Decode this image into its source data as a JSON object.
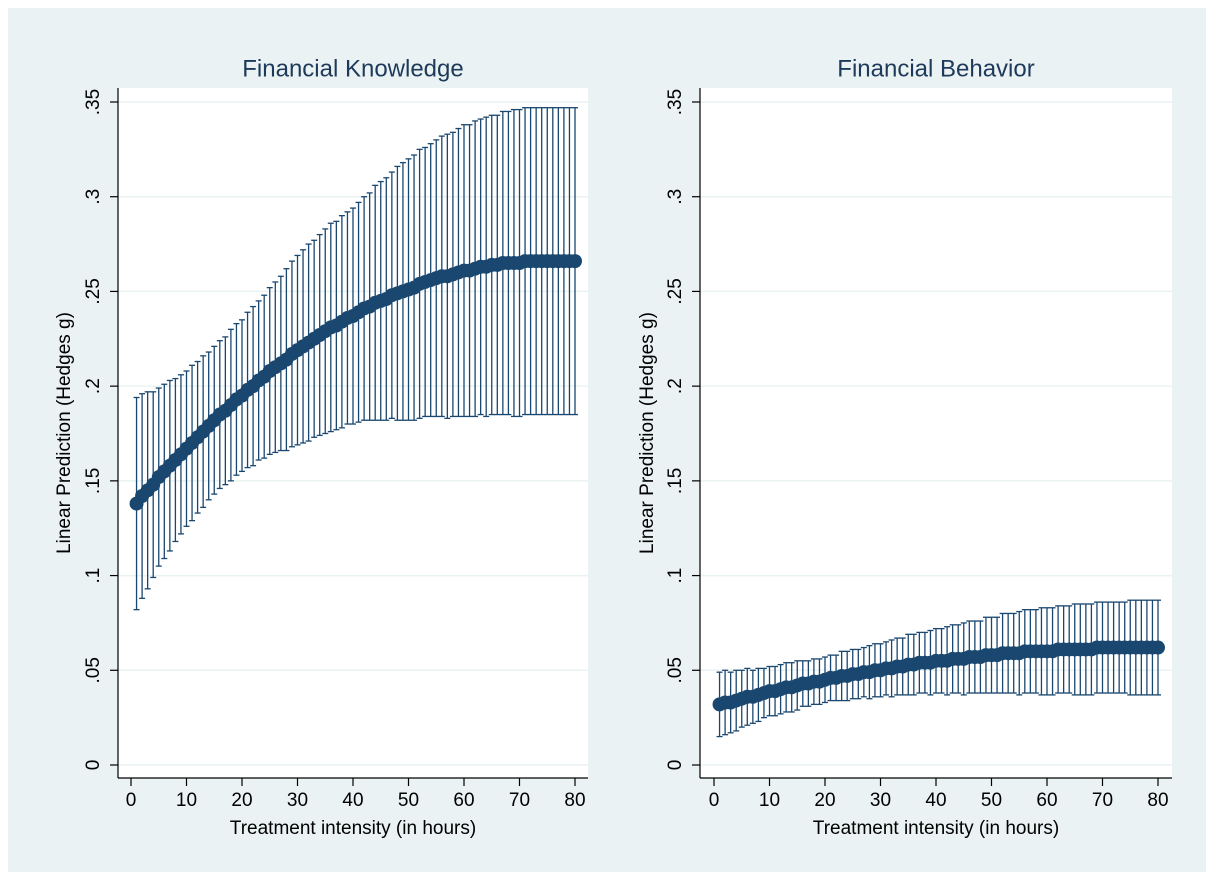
{
  "chart_data": [
    {
      "type": "errorbar",
      "title": "Financial Knowledge",
      "x_label": "Treatment intensity (in hours)",
      "y_label": "Linear Prediction (Hedges g)",
      "color": "#1a476f",
      "grid": true,
      "xlim": [
        0,
        80
      ],
      "xticks": [
        0,
        10,
        20,
        30,
        40,
        50,
        60,
        70,
        80
      ],
      "ylim": [
        0,
        0.35
      ],
      "yticks": [
        {
          "value": 0,
          "label": "0"
        },
        {
          "value": 0.05,
          "label": ".05"
        },
        {
          "value": 0.1,
          "label": ".1"
        },
        {
          "value": 0.15,
          "label": ".15"
        },
        {
          "value": 0.2,
          "label": ".2"
        },
        {
          "value": 0.25,
          "label": ".25"
        },
        {
          "value": 0.3,
          "label": ".3"
        },
        {
          "value": 0.35,
          "label": ".35"
        }
      ],
      "x": [
        1,
        2,
        3,
        4,
        5,
        6,
        7,
        8,
        9,
        10,
        11,
        12,
        13,
        14,
        15,
        16,
        17,
        18,
        19,
        20,
        21,
        22,
        23,
        24,
        25,
        26,
        27,
        28,
        29,
        30,
        31,
        32,
        33,
        34,
        35,
        36,
        37,
        38,
        39,
        40,
        41,
        42,
        43,
        44,
        45,
        46,
        47,
        48,
        49,
        50,
        51,
        52,
        53,
        54,
        55,
        56,
        57,
        58,
        59,
        60,
        61,
        62,
        63,
        64,
        65,
        66,
        67,
        68,
        69,
        70,
        71,
        72,
        73,
        74,
        75,
        76,
        77,
        78,
        79,
        80
      ],
      "values": [
        0.138,
        0.142,
        0.145,
        0.148,
        0.152,
        0.155,
        0.158,
        0.161,
        0.164,
        0.167,
        0.17,
        0.173,
        0.176,
        0.179,
        0.182,
        0.185,
        0.187,
        0.19,
        0.193,
        0.195,
        0.198,
        0.2,
        0.203,
        0.205,
        0.208,
        0.21,
        0.212,
        0.214,
        0.217,
        0.219,
        0.221,
        0.223,
        0.225,
        0.227,
        0.229,
        0.231,
        0.232,
        0.234,
        0.236,
        0.237,
        0.239,
        0.241,
        0.242,
        0.244,
        0.245,
        0.246,
        0.248,
        0.249,
        0.25,
        0.251,
        0.252,
        0.254,
        0.255,
        0.256,
        0.257,
        0.258,
        0.258,
        0.259,
        0.26,
        0.261,
        0.261,
        0.262,
        0.263,
        0.263,
        0.264,
        0.264,
        0.265,
        0.265,
        0.265,
        0.265,
        0.266,
        0.266,
        0.266,
        0.266,
        0.266,
        0.266,
        0.266,
        0.266,
        0.266,
        0.266
      ],
      "errors": [
        0.056,
        0.054,
        0.052,
        0.049,
        0.047,
        0.046,
        0.045,
        0.043,
        0.042,
        0.041,
        0.041,
        0.04,
        0.04,
        0.039,
        0.039,
        0.039,
        0.039,
        0.04,
        0.04,
        0.04,
        0.041,
        0.042,
        0.042,
        0.043,
        0.044,
        0.045,
        0.046,
        0.048,
        0.049,
        0.05,
        0.051,
        0.052,
        0.052,
        0.053,
        0.054,
        0.055,
        0.055,
        0.056,
        0.056,
        0.057,
        0.058,
        0.059,
        0.06,
        0.062,
        0.063,
        0.064,
        0.065,
        0.067,
        0.068,
        0.069,
        0.07,
        0.071,
        0.071,
        0.072,
        0.073,
        0.074,
        0.075,
        0.075,
        0.076,
        0.077,
        0.077,
        0.078,
        0.078,
        0.079,
        0.079,
        0.079,
        0.08,
        0.08,
        0.081,
        0.081,
        0.081,
        0.081,
        0.081,
        0.081,
        0.081,
        0.081,
        0.081,
        0.081,
        0.081,
        0.081
      ]
    },
    {
      "type": "errorbar",
      "title": "Financial Behavior",
      "x_label": "Treatment intensity (in hours)",
      "y_label": "Linear Prediction (Hedges g)",
      "color": "#1a476f",
      "grid": true,
      "xlim": [
        0,
        80
      ],
      "xticks": [
        0,
        10,
        20,
        30,
        40,
        50,
        60,
        70,
        80
      ],
      "ylim": [
        0,
        0.35
      ],
      "yticks": [
        {
          "value": 0,
          "label": "0"
        },
        {
          "value": 0.05,
          "label": ".05"
        },
        {
          "value": 0.1,
          "label": ".1"
        },
        {
          "value": 0.15,
          "label": ".15"
        },
        {
          "value": 0.2,
          "label": ".2"
        },
        {
          "value": 0.25,
          "label": ".25"
        },
        {
          "value": 0.3,
          "label": ".3"
        },
        {
          "value": 0.35,
          "label": ".35"
        }
      ],
      "x": [
        1,
        2,
        3,
        4,
        5,
        6,
        7,
        8,
        9,
        10,
        11,
        12,
        13,
        14,
        15,
        16,
        17,
        18,
        19,
        20,
        21,
        22,
        23,
        24,
        25,
        26,
        27,
        28,
        29,
        30,
        31,
        32,
        33,
        34,
        35,
        36,
        37,
        38,
        39,
        40,
        41,
        42,
        43,
        44,
        45,
        46,
        47,
        48,
        49,
        50,
        51,
        52,
        53,
        54,
        55,
        56,
        57,
        58,
        59,
        60,
        61,
        62,
        63,
        64,
        65,
        66,
        67,
        68,
        69,
        70,
        71,
        72,
        73,
        74,
        75,
        76,
        77,
        78,
        79,
        80
      ],
      "values": [
        0.032,
        0.033,
        0.033,
        0.034,
        0.035,
        0.036,
        0.036,
        0.037,
        0.038,
        0.039,
        0.039,
        0.04,
        0.041,
        0.041,
        0.042,
        0.043,
        0.043,
        0.044,
        0.044,
        0.045,
        0.046,
        0.046,
        0.047,
        0.047,
        0.048,
        0.048,
        0.049,
        0.049,
        0.05,
        0.05,
        0.051,
        0.051,
        0.052,
        0.052,
        0.053,
        0.053,
        0.054,
        0.054,
        0.054,
        0.055,
        0.055,
        0.055,
        0.056,
        0.056,
        0.056,
        0.057,
        0.057,
        0.057,
        0.058,
        0.058,
        0.058,
        0.059,
        0.059,
        0.059,
        0.059,
        0.06,
        0.06,
        0.06,
        0.06,
        0.06,
        0.06,
        0.061,
        0.061,
        0.061,
        0.061,
        0.061,
        0.061,
        0.061,
        0.062,
        0.062,
        0.062,
        0.062,
        0.062,
        0.062,
        0.062,
        0.062,
        0.062,
        0.062,
        0.062,
        0.062
      ],
      "errors": [
        0.017,
        0.017,
        0.016,
        0.016,
        0.015,
        0.015,
        0.014,
        0.014,
        0.013,
        0.013,
        0.013,
        0.013,
        0.013,
        0.013,
        0.013,
        0.012,
        0.012,
        0.012,
        0.012,
        0.012,
        0.012,
        0.012,
        0.013,
        0.013,
        0.013,
        0.013,
        0.013,
        0.014,
        0.014,
        0.014,
        0.014,
        0.015,
        0.015,
        0.015,
        0.016,
        0.016,
        0.016,
        0.016,
        0.017,
        0.017,
        0.017,
        0.018,
        0.018,
        0.018,
        0.019,
        0.019,
        0.019,
        0.019,
        0.02,
        0.02,
        0.02,
        0.021,
        0.021,
        0.021,
        0.022,
        0.022,
        0.022,
        0.022,
        0.023,
        0.023,
        0.023,
        0.023,
        0.023,
        0.023,
        0.024,
        0.024,
        0.024,
        0.024,
        0.024,
        0.024,
        0.024,
        0.024,
        0.024,
        0.024,
        0.025,
        0.025,
        0.025,
        0.025,
        0.025,
        0.025
      ]
    }
  ]
}
